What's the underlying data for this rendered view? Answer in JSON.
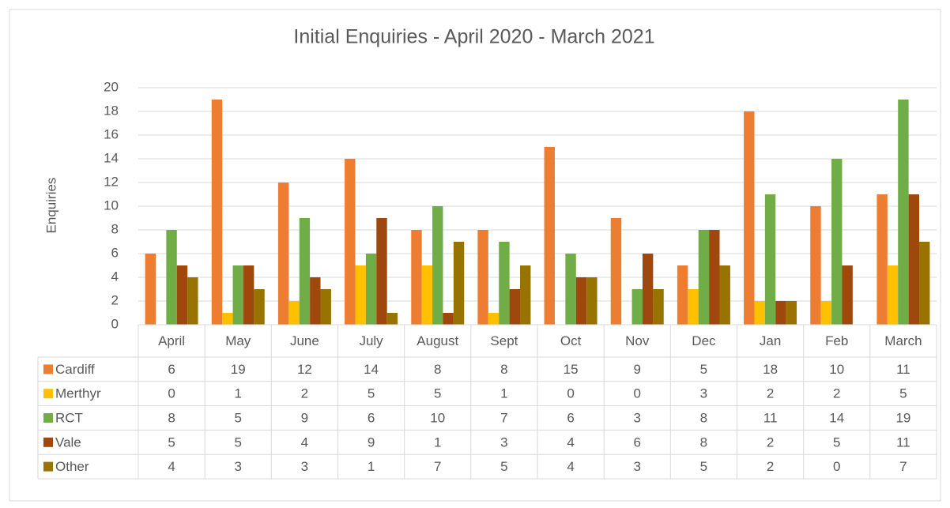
{
  "chart_data": {
    "type": "bar",
    "title": "Initial Enquiries - April 2020 -  March 2021",
    "y_label": "Enquiries",
    "categories": [
      "April",
      "May",
      "June",
      "July",
      "August",
      "Sept",
      "Oct",
      "Nov",
      "Dec",
      "Jan",
      "Feb",
      "March"
    ],
    "series": [
      {
        "name": "Cardiff",
        "color": "#ed7d31",
        "values": [
          6,
          19,
          12,
          14,
          8,
          8,
          15,
          9,
          5,
          18,
          10,
          11
        ]
      },
      {
        "name": "Merthyr",
        "color": "#ffc000",
        "values": [
          0,
          1,
          2,
          5,
          5,
          1,
          0,
          0,
          3,
          2,
          2,
          5
        ]
      },
      {
        "name": "RCT",
        "color": "#70ad47",
        "values": [
          8,
          5,
          9,
          6,
          10,
          7,
          6,
          3,
          8,
          11,
          14,
          19
        ]
      },
      {
        "name": "Vale",
        "color": "#9e480e",
        "values": [
          5,
          5,
          4,
          9,
          1,
          3,
          4,
          6,
          8,
          2,
          5,
          11
        ]
      },
      {
        "name": "Other",
        "color": "#997300",
        "values": [
          4,
          3,
          3,
          1,
          7,
          5,
          4,
          3,
          5,
          2,
          0,
          7
        ]
      }
    ],
    "ylim": [
      0,
      20
    ],
    "yticks": [
      0,
      2,
      4,
      6,
      8,
      10,
      12,
      14,
      16,
      18,
      20
    ],
    "grid": true,
    "data_table": true
  }
}
